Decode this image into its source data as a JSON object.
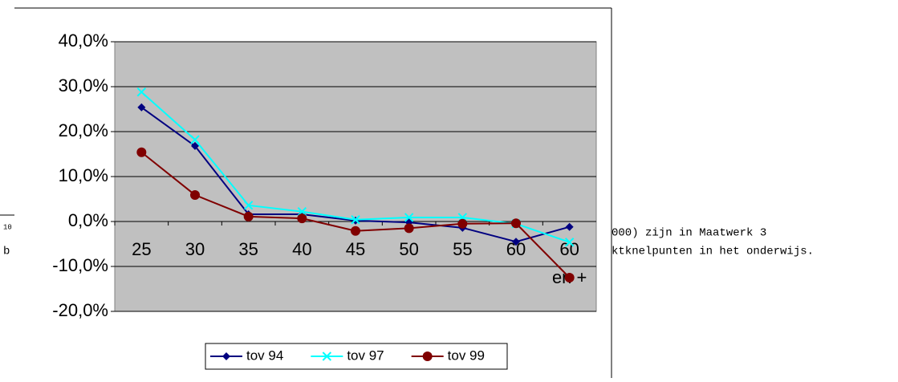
{
  "document": {
    "fragments": [
      "10",
      "b",
      "000) zijn in Maatwerk 3",
      "ktknelpunten in het onderwijs."
    ]
  },
  "chart_data": {
    "type": "line",
    "categories": [
      "25",
      "30",
      "35",
      "40",
      "45",
      "50",
      "55",
      "60",
      "60 en +"
    ],
    "series": [
      {
        "name": "tov 94",
        "color": "#000080",
        "marker": "diamond",
        "values": [
          25.4,
          16.8,
          1.6,
          1.6,
          0.2,
          -0.2,
          -1.4,
          -4.5,
          -1.2
        ]
      },
      {
        "name": "tov 97",
        "color": "#00ffff",
        "marker": "x",
        "values": [
          28.8,
          18.2,
          3.6,
          2.2,
          0.4,
          0.9,
          0.9,
          -0.5,
          -4.6
        ]
      },
      {
        "name": "tov 99",
        "color": "#800000",
        "marker": "circle",
        "values": [
          15.4,
          5.9,
          1.1,
          0.7,
          -2.1,
          -1.5,
          -0.5,
          -0.4,
          -12.5
        ]
      }
    ],
    "ylim": [
      -20,
      40
    ],
    "yticks": [
      {
        "value": -20,
        "label": "-20,0%"
      },
      {
        "value": -10,
        "label": "-10,0%"
      },
      {
        "value": 0,
        "label": "0,0%"
      },
      {
        "value": 10,
        "label": "10,0%"
      },
      {
        "value": 20,
        "label": "20,0%"
      },
      {
        "value": 30,
        "label": "30,0%"
      },
      {
        "value": 40,
        "label": "40,0%"
      }
    ],
    "grid": true,
    "legend": "bottom"
  }
}
